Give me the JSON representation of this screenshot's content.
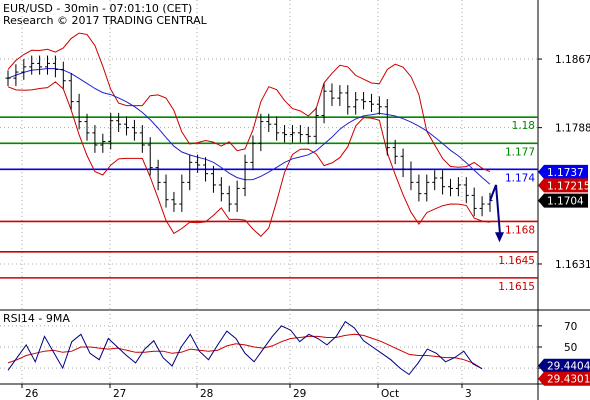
{
  "header": {
    "line1": "EUR/USD - 30min - 07:01:10 (CET)",
    "line2": "Research © 2017 TRADING CENTRAL"
  },
  "rsi_panel": {
    "label": "RSI14 - 9MA"
  },
  "colors": {
    "price": "#000000",
    "bollinger": "#cc0000",
    "moving_average": "#2222cc",
    "resistance": "#008800",
    "pivot": "#0000ee",
    "support": "#cc0000",
    "rsi": "#000080",
    "rsi_ma": "#cc0000",
    "arrow": "#000080"
  },
  "chart_data": [
    {
      "type": "line",
      "title": "EUR/USD - 30min",
      "x_ticks": [
        "26",
        "27",
        "28",
        "29",
        "Oct",
        "3"
      ],
      "y_ticks": [
        1.1867,
        1.1788,
        1.1631
      ],
      "ylim": [
        1.1578,
        1.1935
      ],
      "series": [
        {
          "name": "price",
          "values": [
            1.1845,
            1.1852,
            1.1858,
            1.1862,
            1.1858,
            1.1862,
            1.1855,
            1.1842,
            1.1818,
            1.1795,
            1.1782,
            1.1768,
            1.1772,
            1.1796,
            1.1792,
            1.1788,
            1.1782,
            1.1768,
            1.1742,
            1.1725,
            1.1705,
            1.17,
            1.1725,
            1.1748,
            1.1745,
            1.1735,
            1.1722,
            1.1712,
            1.17,
            1.1718,
            1.1748,
            1.177,
            1.1795,
            1.1792,
            1.1782,
            1.178,
            1.1782,
            1.178,
            1.1778,
            1.1802,
            1.183,
            1.1822,
            1.1828,
            1.1812,
            1.182,
            1.1818,
            1.1815,
            1.1812,
            1.1765,
            1.1755,
            1.174,
            1.1725,
            1.1712,
            1.1725,
            1.173,
            1.172,
            1.1718,
            1.1722,
            1.171,
            1.1695,
            1.17,
            1.1704
          ]
        }
      ],
      "projection": {
        "from": 1.1704,
        "peak": 1.1722,
        "target": 1.1656
      },
      "levels": [
        {
          "label": "1.18",
          "value": 1.18,
          "role": "resistance"
        },
        {
          "label": "1.177",
          "value": 1.177,
          "role": "resistance"
        },
        {
          "label": "1.174",
          "value": 1.174,
          "role": "pivot"
        },
        {
          "label": "1.168",
          "value": 1.168,
          "role": "support"
        },
        {
          "label": "1.1645",
          "value": 1.1645,
          "role": "support"
        },
        {
          "label": "1.1615",
          "value": 1.1615,
          "role": "support"
        }
      ],
      "price_tags": [
        {
          "label": "1.1737",
          "value": 1.1737,
          "color": "#0000ee"
        },
        {
          "label": "1.17215",
          "value": 1.17215,
          "color": "#cc0000"
        },
        {
          "label": "1.1704",
          "value": 1.1704,
          "color": "#000000"
        }
      ]
    },
    {
      "type": "line",
      "title": "RSI14 - 9MA",
      "y_ticks": [
        70,
        50,
        30
      ],
      "ylim": [
        15,
        85
      ],
      "series": [
        {
          "name": "RSI14",
          "values": [
            28,
            40,
            52,
            36,
            60,
            45,
            30,
            55,
            62,
            44,
            38,
            58,
            50,
            42,
            35,
            48,
            56,
            40,
            32,
            50,
            62,
            46,
            38,
            52,
            65,
            58,
            44,
            36,
            48,
            60,
            70,
            66,
            55,
            62,
            58,
            52,
            60,
            74,
            68,
            56,
            50,
            44,
            38,
            30,
            24,
            35,
            48,
            44,
            36,
            40,
            46,
            34,
            29.4404
          ]
        },
        {
          "name": "9MA",
          "values": [
            35,
            38,
            42,
            44,
            46,
            47,
            45,
            46,
            50,
            50,
            49,
            48,
            49,
            47,
            45,
            45,
            46,
            46,
            44,
            45,
            48,
            47,
            46,
            47,
            51,
            53,
            52,
            50,
            49,
            51,
            55,
            58,
            59,
            60,
            60,
            59,
            59,
            61,
            62,
            61,
            58,
            55,
            51,
            47,
            43,
            42,
            42,
            41,
            40,
            40,
            38,
            35,
            29.4301
          ]
        }
      ],
      "value_tags": [
        {
          "label": "29.4404",
          "value": 29.4404,
          "color": "#000080"
        },
        {
          "label": "29.4301",
          "value": 29.4301,
          "color": "#cc0000"
        }
      ]
    }
  ]
}
